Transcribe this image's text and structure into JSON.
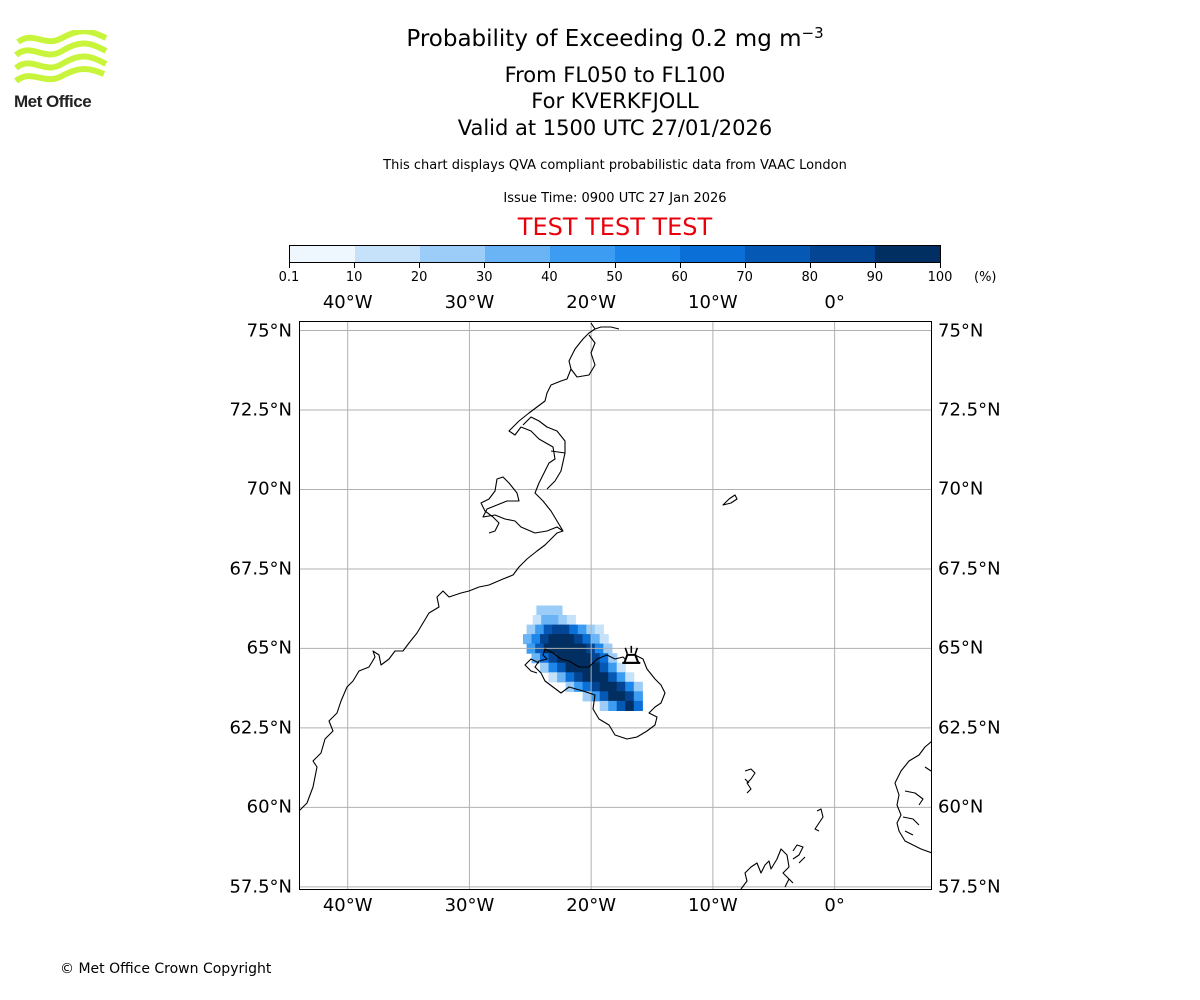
{
  "header": {
    "title_prefix": "Probability of Exceeding 0.2 mg m",
    "title_exponent": "−3",
    "flight_levels": "From FL050 to FL100",
    "volcano": "For KVERKFJOLL",
    "valid_time": "Valid at 1500 UTC 27/01/2026",
    "subtitle": "This chart displays QVA compliant probabilistic data from VAAC London",
    "issue_time": "Issue Time: 0900 UTC 27 Jan 2026",
    "test_banner": "TEST TEST TEST"
  },
  "logo": {
    "text": "Met Office",
    "color": "#c8f53c"
  },
  "footer": {
    "copyright": "© Met Office Crown Copyright"
  },
  "colorbar": {
    "unit": "(%)",
    "tick_labels": [
      "0.1",
      "10",
      "20",
      "30",
      "40",
      "50",
      "60",
      "70",
      "80",
      "90",
      "100"
    ],
    "colors": [
      "#eef6fe",
      "#c6e2fb",
      "#9ccdf8",
      "#6ab4f5",
      "#3b9cf1",
      "#1c86eb",
      "#0b6fd8",
      "#0558b4",
      "#034593",
      "#022f62"
    ]
  },
  "map": {
    "longitude_labels": [
      "40°W",
      "30°W",
      "20°W",
      "10°W",
      "0°"
    ],
    "longitude_values": [
      -40,
      -30,
      -20,
      -10,
      0
    ],
    "latitude_labels": [
      "75°N",
      "72.5°N",
      "70°N",
      "67.5°N",
      "65°N",
      "62.5°N",
      "60°N",
      "57.5°N"
    ],
    "latitude_values": [
      75,
      72.5,
      70,
      67.5,
      65,
      62.5,
      60,
      57.5
    ],
    "extent": {
      "lon_min": -44,
      "lon_max": 8,
      "lat_min": 57.4,
      "lat_max": 75.3
    },
    "volcano_marker": {
      "lon": -16.7,
      "lat": 64.7
    }
  }
}
